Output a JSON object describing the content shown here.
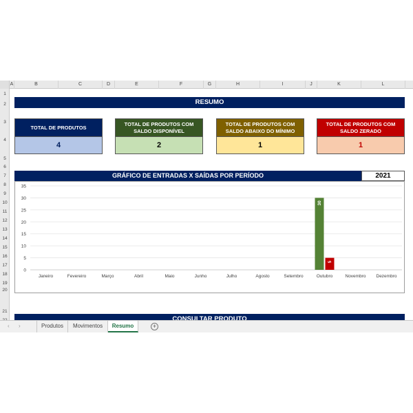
{
  "columns": [
    "A",
    "B",
    "C",
    "D",
    "E",
    "F",
    "G",
    "H",
    "I",
    "J",
    "K",
    "L"
  ],
  "rows": [
    "1",
    "2",
    "3",
    "4",
    "5",
    "6",
    "7",
    "8",
    "9",
    "10",
    "11",
    "12",
    "13",
    "14",
    "15",
    "16",
    "17",
    "18",
    "19",
    "20",
    "21",
    "22"
  ],
  "header": {
    "title": "RESUMO"
  },
  "cards": [
    {
      "title": "TOTAL DE PRODUTOS",
      "value": "4",
      "title_bg": "#002060",
      "value_bg": "#b4c6e7",
      "value_color": "#002060"
    },
    {
      "title": "TOTAL DE PRODUTOS COM SALDO DISPONÍVEL",
      "value": "2",
      "title_bg": "#375623",
      "value_bg": "#c6e0b4",
      "value_color": "#000000"
    },
    {
      "title": "TOTAL DE PRODUTOS COM SALDO ABAIXO DO MÍNIMO",
      "value": "1",
      "title_bg": "#7f6000",
      "value_bg": "#ffe699",
      "value_color": "#000000"
    },
    {
      "title": "TOTAL DE PRODUTOS COM SALDO ZERADO",
      "value": "1",
      "title_bg": "#c00000",
      "value_bg": "#f8cbad",
      "value_color": "#c00000"
    }
  ],
  "chart": {
    "title": "GRÁFICO DE ENTRADAS X SAÍDAS POR PERÍODO",
    "year": "2021"
  },
  "chart_data": {
    "type": "bar",
    "categories": [
      "Janeiro",
      "Fevereiro",
      "Março",
      "Abril",
      "Maio",
      "Junho",
      "Julho",
      "Agosto",
      "Setembro",
      "Outubro",
      "Novembro",
      "Dezembro"
    ],
    "series": [
      {
        "values": [
          0,
          0,
          0,
          0,
          0,
          0,
          0,
          0,
          0,
          30,
          0,
          0
        ],
        "color": "#548235"
      },
      {
        "values": [
          0,
          0,
          0,
          0,
          0,
          0,
          0,
          0,
          0,
          5,
          0,
          0
        ],
        "color": "#c00000"
      }
    ],
    "yticks": [
      "0",
      "5",
      "10",
      "15",
      "20",
      "25",
      "30",
      "35"
    ],
    "ylim": [
      0,
      35
    ],
    "grid": true
  },
  "footer": {
    "title": "CONSULTAR PRODUTO"
  },
  "tabs": [
    {
      "label": "Produtos"
    },
    {
      "label": "Movimentos"
    },
    {
      "label": "Resumo",
      "active": true
    }
  ],
  "add_tab_label": "+",
  "nav": {
    "prev": "‹",
    "next": "›"
  }
}
